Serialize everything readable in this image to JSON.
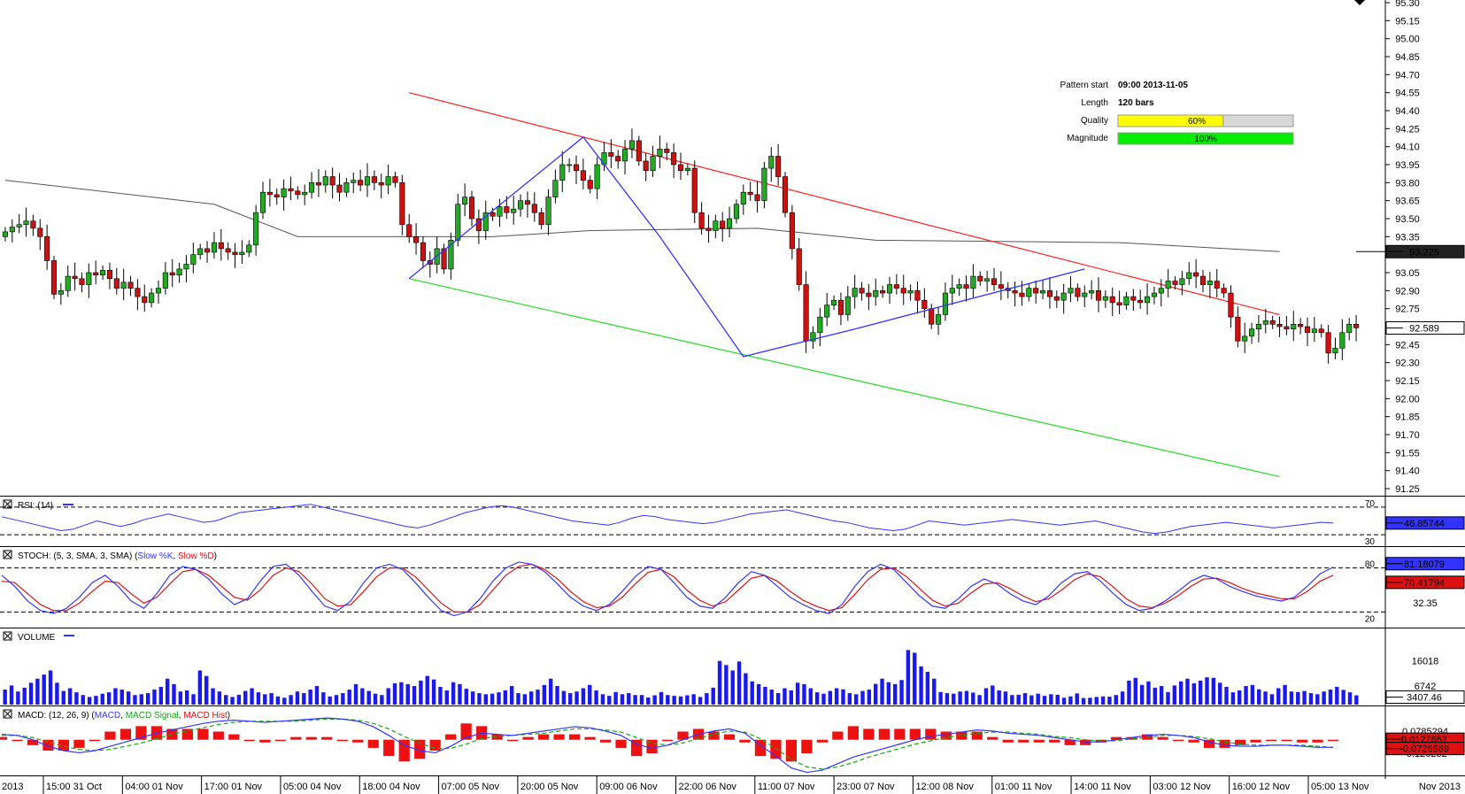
{
  "pattern_info": {
    "start_label": "Pattern start",
    "start_value": "09:00 2013-11-05",
    "length_label": "Length",
    "length_value": "120 bars",
    "quality_label": "Quality",
    "quality_value": "60%",
    "quality_fraction": 0.6,
    "magnitude_label": "Magnitude",
    "magnitude_value": "100%",
    "magnitude_fraction": 1.0
  },
  "colors": {
    "bull": "#22aa22",
    "bear": "#cc1111",
    "resistance": "#ff2020",
    "support": "#22dd22",
    "pattern": "#3333ff",
    "sma": "#555555",
    "quality_bar": "#ffff00",
    "magnitude_bar": "#00ee00"
  },
  "chart_data": [
    {
      "type": "candlestick",
      "panel": "price",
      "ylim": [
        91.25,
        95.3
      ],
      "yticks": [
        "95.30",
        "95.15",
        "95.00",
        "94.85",
        "94.70",
        "94.55",
        "94.40",
        "94.25",
        "94.10",
        "93.95",
        "93.80",
        "93.65",
        "93.50",
        "93.35",
        "93.20",
        "93.05",
        "92.90",
        "92.75",
        "92.60",
        "92.45",
        "92.30",
        "92.15",
        "92.00",
        "91.85",
        "91.70",
        "91.55",
        "91.40",
        "91.25"
      ],
      "current_sma_label": "93.225",
      "current_sma_value": 93.225,
      "current_price_label": "92.589",
      "current_price_value": 92.589,
      "x_labels": [
        "2013",
        "15:00 31 Oct",
        "04:00 01 Nov",
        "17:00 01 Nov",
        "05:00 04 Nov",
        "18:00 04 Nov",
        "07:00 05 Nov",
        "20:00 05 Nov",
        "09:00 06 Nov",
        "22:00 06 Nov",
        "11:00 07 Nov",
        "23:00 07 Nov",
        "12:00 08 Nov",
        "01:00 11 Nov",
        "14:00 11 Nov",
        "03:00 12 Nov",
        "16:00 12 Nov",
        "05:00 13 Nov",
        "Nov 2013"
      ],
      "closes": [
        93.39,
        93.43,
        93.45,
        93.48,
        93.42,
        93.35,
        93.15,
        92.87,
        92.9,
        93.02,
        93.0,
        92.95,
        93.05,
        93.03,
        93.07,
        93.0,
        92.92,
        92.97,
        92.92,
        92.85,
        92.8,
        92.88,
        92.92,
        93.05,
        93.03,
        93.08,
        93.12,
        93.2,
        93.25,
        93.22,
        93.3,
        93.25,
        93.22,
        93.2,
        93.22,
        93.28,
        93.55,
        93.72,
        93.7,
        93.68,
        93.75,
        93.73,
        93.7,
        93.72,
        93.8,
        93.78,
        93.85,
        93.78,
        93.72,
        93.8,
        93.82,
        93.78,
        93.85,
        93.8,
        93.78,
        93.85,
        93.8,
        93.45,
        93.35,
        93.3,
        93.15,
        93.12,
        93.25,
        93.08,
        93.32,
        93.62,
        93.68,
        93.5,
        93.4,
        93.55,
        93.52,
        93.6,
        93.55,
        93.58,
        93.65,
        93.62,
        93.55,
        93.45,
        93.68,
        93.82,
        93.95,
        93.95,
        93.9,
        93.82,
        93.75,
        93.95,
        94.05,
        94.02,
        93.98,
        94.08,
        94.15,
        93.98,
        93.9,
        94.02,
        94.08,
        94.05,
        93.95,
        93.9,
        93.92,
        93.55,
        93.42,
        93.4,
        93.48,
        93.42,
        93.5,
        93.62,
        93.72,
        93.7,
        93.65,
        93.92,
        94.02,
        93.85,
        93.55,
        93.25,
        92.95,
        92.48,
        92.55,
        92.68,
        92.78,
        92.82,
        92.7,
        92.85,
        92.92,
        92.88,
        92.85,
        92.9,
        92.88,
        92.95,
        92.92,
        92.88,
        92.9,
        92.82,
        92.75,
        92.62,
        92.7,
        92.88,
        92.92,
        92.95,
        92.92,
        93.02,
        92.98,
        93.0,
        92.95,
        92.92,
        92.9,
        92.88,
        92.85,
        92.92,
        92.88,
        92.9,
        92.85,
        92.82,
        92.88,
        92.92,
        92.85,
        92.88,
        92.9,
        92.82,
        92.85,
        92.8,
        92.78,
        92.85,
        92.82,
        92.8,
        92.85,
        92.88,
        92.92,
        92.98,
        92.95,
        93.0,
        93.05,
        93.02,
        92.95,
        92.98,
        92.92,
        92.88,
        92.68,
        92.48,
        92.52,
        92.58,
        92.62,
        92.65,
        92.62,
        92.6,
        92.58,
        92.62,
        92.6,
        92.55,
        92.58,
        92.55,
        92.38,
        92.42,
        92.55,
        92.62,
        92.59
      ],
      "sma_points": [
        [
          0,
          93.82
        ],
        [
          30,
          93.62
        ],
        [
          42,
          93.35
        ],
        [
          70,
          93.35
        ],
        [
          84,
          93.4
        ],
        [
          108,
          93.42
        ],
        [
          125,
          93.32
        ],
        [
          160,
          93.3
        ],
        [
          183,
          93.225
        ]
      ],
      "resistance_line": [
        [
          58,
          94.55
        ],
        [
          183,
          92.7
        ]
      ],
      "support_line": [
        [
          58,
          93.0
        ],
        [
          183,
          91.35
        ]
      ],
      "pattern_path": [
        [
          58,
          93.0
        ],
        [
          83,
          94.18
        ],
        [
          94,
          93.35
        ],
        [
          106,
          92.35
        ],
        [
          122,
          92.58
        ],
        [
          155,
          93.08
        ]
      ]
    },
    {
      "type": "line",
      "panel": "rsi",
      "title": "RSI: (14)",
      "levels": [
        "70",
        "30"
      ],
      "level_values": [
        70,
        30
      ],
      "ylim": [
        20,
        80
      ],
      "current_label": "46.85744",
      "series": [
        {
          "values": [
            56,
            52,
            48,
            44,
            40,
            36,
            38,
            44,
            50,
            46,
            42,
            46,
            52,
            56,
            60,
            56,
            52,
            48,
            50,
            56,
            62,
            64,
            66,
            68,
            70,
            72,
            74,
            70,
            66,
            62,
            58,
            54,
            50,
            46,
            42,
            40,
            44,
            50,
            56,
            62,
            66,
            70,
            72,
            70,
            66,
            62,
            58,
            54,
            50,
            48,
            46,
            44,
            48,
            54,
            58,
            56,
            52,
            50,
            48,
            46,
            48,
            52,
            56,
            60,
            62,
            64,
            66,
            62,
            58,
            54,
            50,
            48,
            44,
            40,
            38,
            36,
            38,
            44,
            50,
            48,
            46,
            44,
            46,
            48,
            50,
            52,
            50,
            48,
            46,
            44,
            46,
            48,
            50,
            46,
            42,
            38,
            34,
            32,
            34,
            38,
            42,
            44,
            46,
            48,
            46,
            44,
            42,
            40,
            42,
            44,
            46,
            48,
            47
          ]
        }
      ]
    },
    {
      "type": "line",
      "panel": "stoch",
      "title": "STOCH: (5, 3, SMA, 3, SMA)",
      "legend": [
        "Slow %K",
        "Slow %D"
      ],
      "levels": [
        "80",
        "20"
      ],
      "level_values": [
        80,
        20
      ],
      "ylim": [
        0,
        100
      ],
      "current_labels": [
        "81.18079",
        "70.41794"
      ],
      "right_tick_label": "32.35",
      "series": [
        {
          "name": "Slow %K",
          "values": [
            70,
            55,
            35,
            22,
            18,
            25,
            40,
            60,
            70,
            55,
            35,
            25,
            45,
            70,
            82,
            78,
            65,
            45,
            30,
            38,
            62,
            82,
            85,
            70,
            48,
            28,
            22,
            35,
            60,
            80,
            85,
            78,
            60,
            40,
            22,
            15,
            20,
            38,
            62,
            80,
            88,
            85,
            75,
            58,
            40,
            28,
            22,
            30,
            48,
            68,
            82,
            78,
            60,
            40,
            28,
            25,
            40,
            60,
            75,
            70,
            55,
            40,
            30,
            22,
            18,
            30,
            55,
            75,
            85,
            78,
            60,
            42,
            28,
            25,
            38,
            55,
            65,
            58,
            45,
            35,
            30,
            42,
            60,
            72,
            75,
            62,
            45,
            30,
            22,
            25,
            35,
            48,
            62,
            70,
            65,
            55,
            48,
            42,
            38,
            35,
            40,
            55,
            72,
            81
          ]
        },
        {
          "name": "Slow %D",
          "values": [
            62,
            60,
            45,
            30,
            22,
            22,
            32,
            48,
            62,
            60,
            45,
            32,
            40,
            58,
            75,
            78,
            70,
            55,
            40,
            36,
            50,
            70,
            80,
            75,
            58,
            38,
            28,
            30,
            48,
            68,
            80,
            80,
            68,
            50,
            32,
            20,
            20,
            30,
            50,
            70,
            82,
            85,
            78,
            65,
            48,
            34,
            26,
            28,
            40,
            58,
            74,
            78,
            68,
            50,
            36,
            28,
            34,
            50,
            66,
            70,
            62,
            48,
            36,
            28,
            22,
            26,
            44,
            64,
            78,
            80,
            68,
            52,
            36,
            28,
            32,
            46,
            58,
            60,
            52,
            42,
            34,
            38,
            50,
            64,
            72,
            68,
            54,
            38,
            28,
            26,
            32,
            42,
            55,
            65,
            66,
            60,
            52,
            46,
            42,
            38,
            38,
            48,
            62,
            70
          ]
        }
      ]
    },
    {
      "type": "bar",
      "panel": "volume",
      "title": "VOLUME",
      "ylim": [
        0,
        24000
      ],
      "right_tick_labels": [
        "16018",
        "6742"
      ],
      "current_label": "3407.46",
      "values": [
        5500,
        7000,
        4800,
        6200,
        8000,
        9500,
        11000,
        12500,
        8000,
        5000,
        6000,
        4500,
        3500,
        2800,
        3200,
        4000,
        4500,
        6000,
        5500,
        4800,
        3500,
        3800,
        4200,
        5500,
        6500,
        9500,
        7500,
        4800,
        5200,
        3800,
        12500,
        10500,
        6000,
        4800,
        3500,
        2800,
        3600,
        5000,
        6000,
        4500,
        3800,
        4200,
        3000,
        2500,
        3500,
        4800,
        4200,
        5500,
        6800,
        4500,
        3000,
        3500,
        4200,
        5500,
        7500,
        6000,
        5000,
        4000,
        3500,
        6000,
        7800,
        8200,
        7500,
        6800,
        8800,
        10500,
        9200,
        6500,
        5200,
        8200,
        7500,
        5800,
        4800,
        4200,
        3800,
        4000,
        4500,
        5200,
        6800,
        4200,
        3800,
        4800,
        5500,
        7200,
        9500,
        6800,
        5000,
        4200,
        4800,
        6000,
        7200,
        5200,
        3800,
        3200,
        4600,
        3800,
        4200,
        3500,
        3500,
        2600,
        3400,
        4600,
        3500,
        3200,
        3000,
        3400,
        3800,
        2800,
        4200,
        6200,
        16000,
        14500,
        12500,
        15800,
        11500,
        8500,
        7500,
        6500,
        5500,
        4200,
        6000,
        5200,
        8000,
        7500,
        6000,
        4500,
        4000,
        5000,
        6000,
        5600,
        4200,
        3800,
        5000,
        5500,
        7600,
        9500,
        8200,
        7500,
        9000,
        20000,
        19000,
        14000,
        12000,
        9500,
        4600,
        4200,
        4000,
        4800,
        5000,
        4400,
        3500,
        6000,
        7000,
        5200,
        4800,
        3500,
        3600,
        4200,
        3400,
        4000,
        3200,
        3800,
        3600,
        2500,
        3000,
        4100,
        2400,
        2500,
        2800,
        3000,
        2900,
        3500,
        4800,
        8800,
        9800,
        7200,
        8500,
        6200,
        6800,
        4600,
        7000,
        8500,
        9500,
        7800,
        8800,
        10000,
        9800,
        8000,
        6500,
        4500,
        5200,
        6800,
        7200,
        5600,
        4800,
        3800,
        6000,
        7200,
        4800,
        4600,
        5000,
        4200,
        3800,
        4800,
        5500,
        6500,
        5400,
        4500,
        3400
      ]
    },
    {
      "type": "line",
      "panel": "macd",
      "title": "MACD: (12, 26, 9)",
      "legend": [
        "MACD",
        "MACD Signal",
        "MACD Hist"
      ],
      "ylim": [
        -0.32,
        0.25
      ],
      "right_tick_labels": [
        "0.0785294",
        "-0.126252"
      ],
      "current_labels": [
        "0.0127657",
        "-0.0726669"
      ],
      "series": [
        {
          "name": "MACD",
          "values": [
            0.05,
            0.04,
            0.0,
            -0.06,
            -0.1,
            -0.12,
            -0.1,
            -0.06,
            -0.02,
            0.02,
            0.06,
            0.09,
            0.12,
            0.15,
            0.17,
            0.18,
            0.17,
            0.16,
            0.17,
            0.18,
            0.19,
            0.2,
            0.19,
            0.17,
            0.12,
            0.04,
            -0.05,
            -0.1,
            -0.12,
            -0.06,
            0.02,
            0.06,
            0.05,
            0.04,
            0.06,
            0.08,
            0.1,
            0.12,
            0.11,
            0.08,
            0.04,
            -0.04,
            -0.08,
            -0.05,
            0.0,
            0.05,
            0.08,
            0.1,
            0.06,
            -0.05,
            -0.15,
            -0.26,
            -0.3,
            -0.28,
            -0.22,
            -0.16,
            -0.12,
            -0.08,
            -0.04,
            0.0,
            0.03,
            0.05,
            0.07,
            0.09,
            0.08,
            0.06,
            0.05,
            0.04,
            0.02,
            0.0,
            -0.02,
            -0.02,
            0.0,
            0.02,
            0.04,
            0.05,
            0.04,
            0.02,
            -0.02,
            -0.05,
            -0.06,
            -0.06,
            -0.05,
            -0.05,
            -0.06,
            -0.07,
            -0.07
          ]
        },
        {
          "name": "MACD Signal",
          "values": [
            0.04,
            0.04,
            0.02,
            -0.02,
            -0.06,
            -0.09,
            -0.1,
            -0.09,
            -0.06,
            -0.03,
            0.01,
            0.05,
            0.08,
            0.11,
            0.14,
            0.16,
            0.17,
            0.17,
            0.17,
            0.17,
            0.18,
            0.19,
            0.19,
            0.18,
            0.15,
            0.1,
            0.03,
            -0.03,
            -0.08,
            -0.08,
            -0.04,
            0.01,
            0.03,
            0.04,
            0.05,
            0.06,
            0.08,
            0.1,
            0.1,
            0.09,
            0.07,
            0.02,
            -0.03,
            -0.05,
            -0.03,
            0.01,
            0.05,
            0.08,
            0.07,
            0.01,
            -0.08,
            -0.18,
            -0.25,
            -0.27,
            -0.25,
            -0.21,
            -0.16,
            -0.12,
            -0.08,
            -0.04,
            -0.01,
            0.02,
            0.04,
            0.06,
            0.07,
            0.07,
            0.06,
            0.05,
            0.03,
            0.02,
            0.0,
            -0.01,
            -0.01,
            0.01,
            0.02,
            0.04,
            0.04,
            0.03,
            0.01,
            -0.02,
            -0.04,
            -0.05,
            -0.05,
            -0.05,
            -0.05,
            -0.06,
            -0.07
          ]
        }
      ]
    }
  ]
}
